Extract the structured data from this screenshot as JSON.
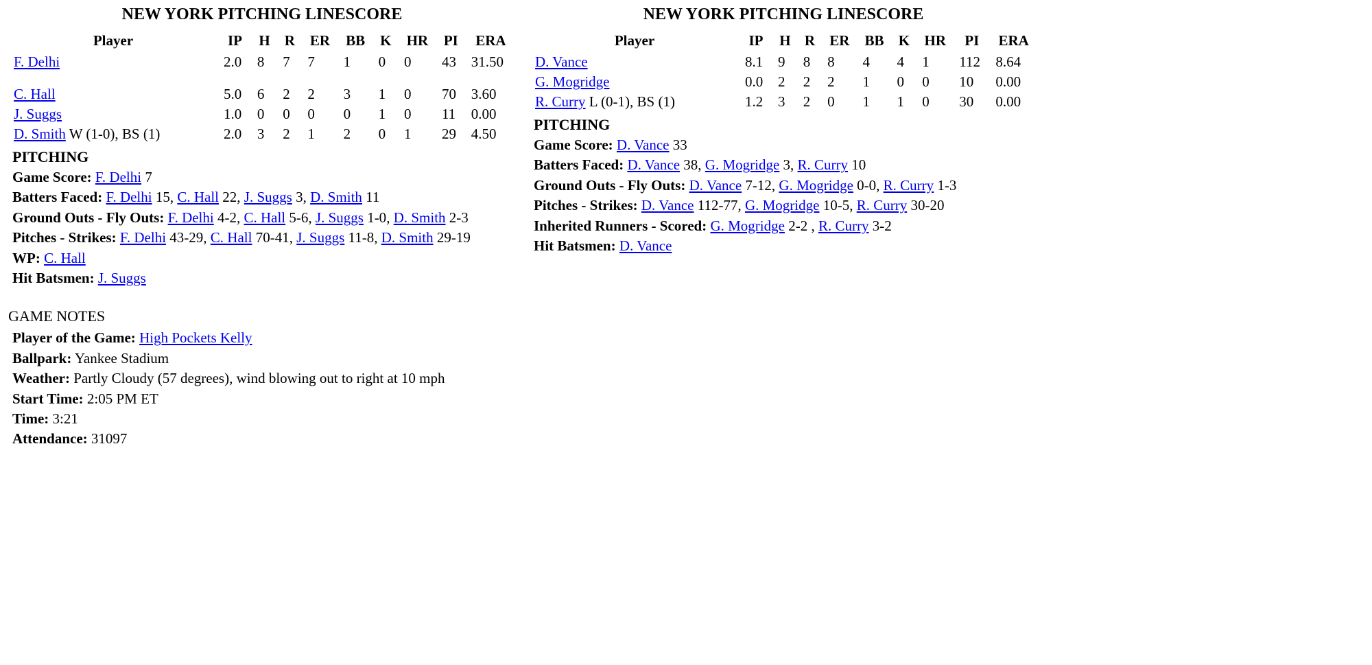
{
  "left": {
    "title": "NEW YORK PITCHING LINESCORE",
    "headers": {
      "player": "Player",
      "ip": "IP",
      "h": "H",
      "r": "R",
      "er": "ER",
      "bb": "BB",
      "k": "K",
      "hr": "HR",
      "pi": "PI",
      "era": "ERA"
    },
    "rows": [
      {
        "player": "F. Delhi",
        "note": "",
        "ip": "2.0",
        "h": "8",
        "r": "7",
        "er": "7",
        "bb": "1",
        "k": "0",
        "hr": "0",
        "pi": "43",
        "era": "31.50"
      },
      {
        "player": "C. Hall",
        "note": "",
        "ip": "5.0",
        "h": "6",
        "r": "2",
        "er": "2",
        "bb": "3",
        "k": "1",
        "hr": "0",
        "pi": "70",
        "era": "3.60"
      },
      {
        "player": "J. Suggs",
        "note": "",
        "ip": "1.0",
        "h": "0",
        "r": "0",
        "er": "0",
        "bb": "0",
        "k": "1",
        "hr": "0",
        "pi": "11",
        "era": "0.00"
      },
      {
        "player": "D. Smith",
        "note": " W (1-0), BS (1)",
        "ip": "2.0",
        "h": "3",
        "r": "2",
        "er": "1",
        "bb": "2",
        "k": "0",
        "hr": "1",
        "pi": "29",
        "era": "4.50"
      }
    ],
    "pitching_label": "PITCHING",
    "notes": {
      "game_score_label": "Game Score:",
      "game_score": [
        {
          "p": "F. Delhi",
          "v": " 7"
        }
      ],
      "batters_faced_label": "Batters Faced:",
      "batters_faced": [
        {
          "p": "F. Delhi",
          "v": " 15"
        },
        {
          "p": "C. Hall",
          "v": " 22"
        },
        {
          "p": "J. Suggs",
          "v": " 3"
        },
        {
          "p": "D. Smith",
          "v": " 11"
        }
      ],
      "go_fo_label": "Ground Outs - Fly Outs:",
      "go_fo": [
        {
          "p": "F. Delhi",
          "v": " 4-2"
        },
        {
          "p": "C. Hall",
          "v": " 5-6"
        },
        {
          "p": "J. Suggs",
          "v": " 1-0"
        },
        {
          "p": "D. Smith",
          "v": " 2-3"
        }
      ],
      "pitches_strikes_label": "Pitches - Strikes:",
      "pitches_strikes": [
        {
          "p": "F. Delhi",
          "v": " 43-29"
        },
        {
          "p": "C. Hall",
          "v": " 70-41"
        },
        {
          "p": "J. Suggs",
          "v": " 11-8"
        },
        {
          "p": "D. Smith",
          "v": " 29-19"
        }
      ],
      "wp_label": "WP:",
      "wp": [
        {
          "p": "C. Hall",
          "v": ""
        }
      ],
      "hb_label": "Hit Batsmen:",
      "hb": [
        {
          "p": "J. Suggs",
          "v": ""
        }
      ]
    }
  },
  "right": {
    "title": "NEW YORK PITCHING LINESCORE",
    "headers": {
      "player": "Player",
      "ip": "IP",
      "h": "H",
      "r": "R",
      "er": "ER",
      "bb": "BB",
      "k": "K",
      "hr": "HR",
      "pi": "PI",
      "era": "ERA"
    },
    "rows": [
      {
        "player": "D. Vance",
        "note": "",
        "ip": "8.1",
        "h": "9",
        "r": "8",
        "er": "8",
        "bb": "4",
        "k": "4",
        "hr": "1",
        "pi": "112",
        "era": "8.64"
      },
      {
        "player": "G. Mogridge",
        "note": "",
        "ip": "0.0",
        "h": "2",
        "r": "2",
        "er": "2",
        "bb": "1",
        "k": "0",
        "hr": "0",
        "pi": "10",
        "era": "0.00"
      },
      {
        "player": "R. Curry",
        "note": " L (0-1), BS (1)",
        "ip": "1.2",
        "h": "3",
        "r": "2",
        "er": "0",
        "bb": "1",
        "k": "1",
        "hr": "0",
        "pi": "30",
        "era": "0.00"
      }
    ],
    "pitching_label": "PITCHING",
    "notes": {
      "game_score_label": "Game Score:",
      "game_score": [
        {
          "p": "D. Vance",
          "v": " 33"
        }
      ],
      "batters_faced_label": "Batters Faced:",
      "batters_faced": [
        {
          "p": "D. Vance",
          "v": " 38"
        },
        {
          "p": "G. Mogridge",
          "v": " 3"
        },
        {
          "p": "R. Curry",
          "v": " 10"
        }
      ],
      "go_fo_label": "Ground Outs - Fly Outs:",
      "go_fo": [
        {
          "p": "D. Vance",
          "v": " 7-12"
        },
        {
          "p": "G. Mogridge",
          "v": " 0-0"
        },
        {
          "p": "R. Curry",
          "v": " 1-3"
        }
      ],
      "pitches_strikes_label": "Pitches - Strikes:",
      "pitches_strikes": [
        {
          "p": "D. Vance",
          "v": " 112-77"
        },
        {
          "p": "G. Mogridge",
          "v": " 10-5"
        },
        {
          "p": "R. Curry",
          "v": " 30-20"
        }
      ],
      "inherited_label": "Inherited Runners - Scored:",
      "inherited": [
        {
          "p": "G. Mogridge",
          "v": " 2-2 "
        },
        {
          "p": "R. Curry",
          "v": " 3-2"
        }
      ],
      "hb_label": "Hit Batsmen:",
      "hb": [
        {
          "p": "D. Vance",
          "v": ""
        }
      ]
    }
  },
  "game_notes": {
    "header": "GAME NOTES",
    "potg_label": "Player of the Game:",
    "potg": "High Pockets Kelly",
    "ballpark_label": "Ballpark:",
    "ballpark": " Yankee Stadium",
    "weather_label": "Weather:",
    "weather": " Partly Cloudy (57 degrees), wind blowing out to right at 10 mph",
    "start_label": "Start Time:",
    "start": " 2:05 PM ET",
    "time_label": "Time:",
    "time": " 3:21",
    "attendance_label": "Attendance:",
    "attendance": " 31097"
  }
}
